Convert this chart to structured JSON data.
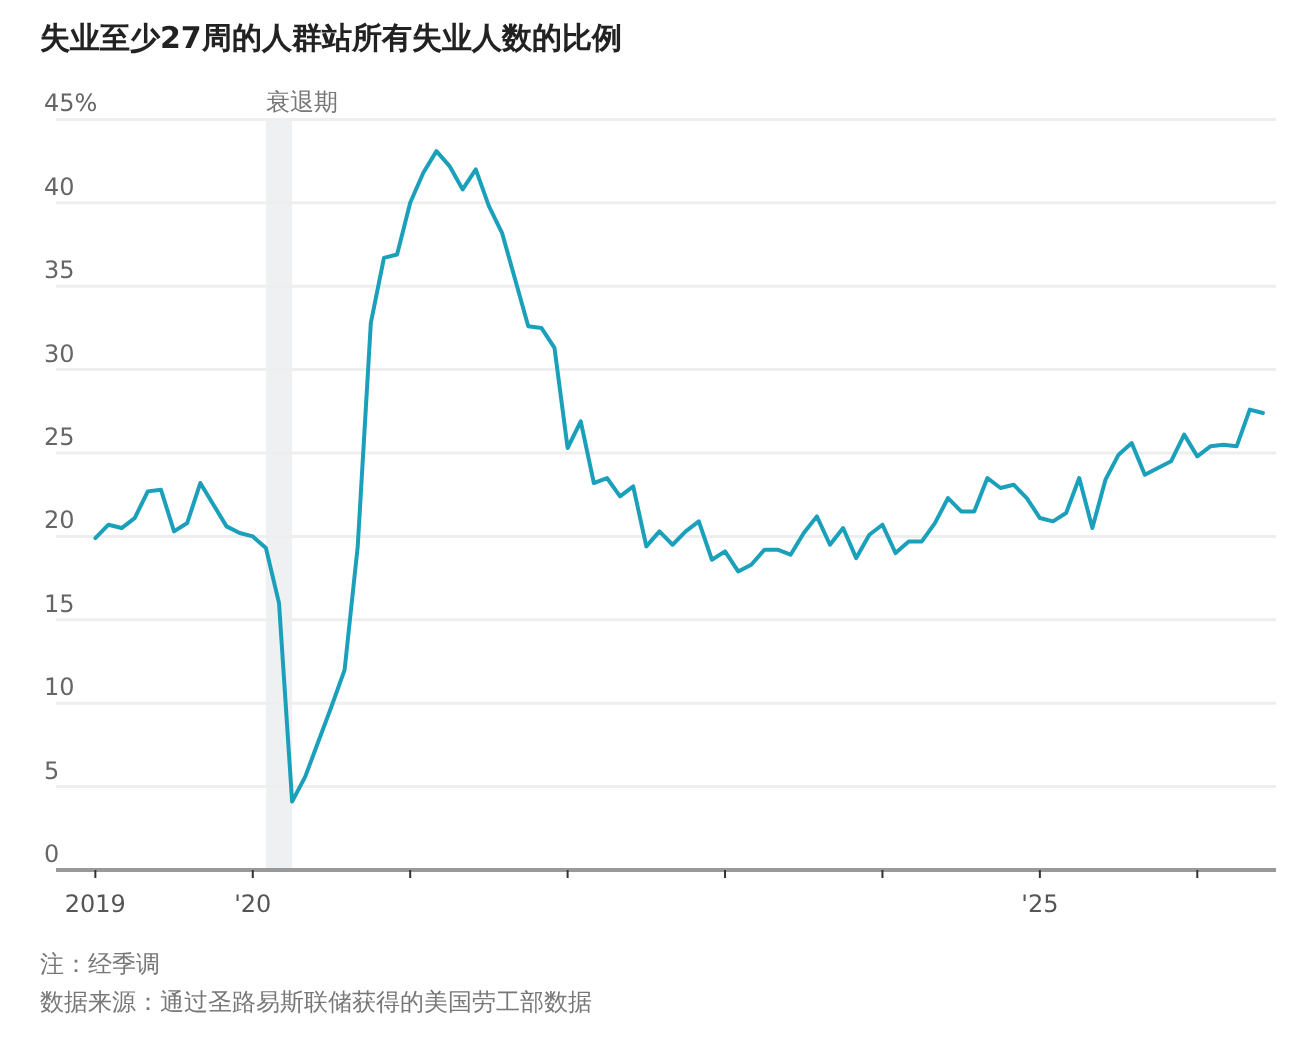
{
  "chart_data": {
    "type": "line",
    "title": "失业至少27周的人群站所有失业人数的比例",
    "x": [
      "2019-01",
      "2019-02",
      "2019-03",
      "2019-04",
      "2019-05",
      "2019-06",
      "2019-07",
      "2019-08",
      "2019-09",
      "2019-10",
      "2019-11",
      "2019-12",
      "2020-01",
      "2020-02",
      "2020-03",
      "2020-04",
      "2020-05",
      "2020-06",
      "2020-07",
      "2020-08",
      "2020-09",
      "2020-10",
      "2020-11",
      "2020-12",
      "2021-01",
      "2021-02",
      "2021-03",
      "2021-04",
      "2021-05",
      "2021-06",
      "2021-07",
      "2021-08",
      "2021-09",
      "2021-10",
      "2021-11",
      "2021-12",
      "2022-01",
      "2022-02",
      "2022-03",
      "2022-04",
      "2022-05",
      "2022-06",
      "2022-07",
      "2022-08",
      "2022-09",
      "2022-10",
      "2022-11",
      "2022-12",
      "2023-01",
      "2023-02",
      "2023-03",
      "2023-04",
      "2023-05",
      "2023-06",
      "2023-07",
      "2023-08",
      "2023-09",
      "2023-10",
      "2023-11",
      "2023-12",
      "2024-01",
      "2024-02",
      "2024-03",
      "2024-04",
      "2024-05",
      "2024-06",
      "2024-07",
      "2024-08",
      "2024-09",
      "2024-10",
      "2024-11",
      "2024-12",
      "2025-01",
      "2025-02",
      "2025-03",
      "2025-04",
      "2025-05",
      "2025-06",
      "2025-07",
      "2025-08",
      "2025-09",
      "2025-10",
      "2025-11",
      "2025-12",
      "2026-01",
      "2026-02",
      "2026-03",
      "2026-04",
      "2026-05",
      "2026-06"
    ],
    "series": [
      {
        "color": "#1aa0ba",
        "values": [
          19.9,
          20.7,
          20.5,
          21.1,
          22.7,
          22.8,
          20.3,
          20.8,
          23.2,
          21.9,
          20.6,
          20.2,
          20.0,
          19.3,
          16.0,
          4.1,
          5.6,
          7.7,
          9.8,
          12.0,
          19.4,
          32.8,
          36.7,
          36.9,
          40.0,
          41.8,
          43.1,
          42.2,
          40.8,
          42.0,
          39.8,
          38.2,
          35.4,
          32.6,
          32.5,
          31.3,
          25.3,
          26.9,
          23.2,
          23.5,
          22.4,
          23.0,
          19.4,
          20.3,
          19.5,
          20.3,
          20.9,
          18.6,
          19.1,
          17.9,
          18.3,
          19.2,
          19.2,
          18.9,
          20.2,
          21.2,
          19.5,
          20.5,
          18.7,
          20.1,
          20.7,
          19.0,
          19.7,
          19.7,
          20.8,
          22.3,
          21.5,
          21.5,
          23.5,
          22.9,
          23.1,
          22.3,
          21.1,
          20.9,
          21.4,
          23.5,
          20.5,
          23.4,
          24.9,
          25.6,
          23.7,
          24.1,
          24.5,
          26.1,
          24.8,
          25.4,
          25.5,
          25.4,
          27.6,
          27.4
        ]
      }
    ],
    "xlim": [
      "2018-10",
      "2026-07"
    ],
    "xticks": [
      {
        "value": "2019",
        "label": "2019"
      },
      {
        "value": "2020",
        "label": "'20"
      },
      {
        "value": "2021",
        "label": null
      },
      {
        "value": "2022",
        "label": null
      },
      {
        "value": "2023",
        "label": null
      },
      {
        "value": "2024",
        "label": null
      },
      {
        "value": "2025",
        "label": "'25"
      },
      {
        "value": "2026",
        "label": null
      }
    ],
    "ylim": [
      0,
      45
    ],
    "yticks": [
      0,
      5,
      10,
      15,
      20,
      25,
      30,
      35,
      40,
      {
        "value": 45,
        "label": "45%"
      }
    ],
    "grid": "y",
    "bands": [
      {
        "axis": "x",
        "from": "2020-02",
        "to": "2020-04",
        "label": "衰退期",
        "color": "#eef0f2"
      }
    ],
    "annotations": [
      "注：经季调",
      "数据来源：通过圣路易斯联储获得的美国劳工部数据"
    ]
  }
}
